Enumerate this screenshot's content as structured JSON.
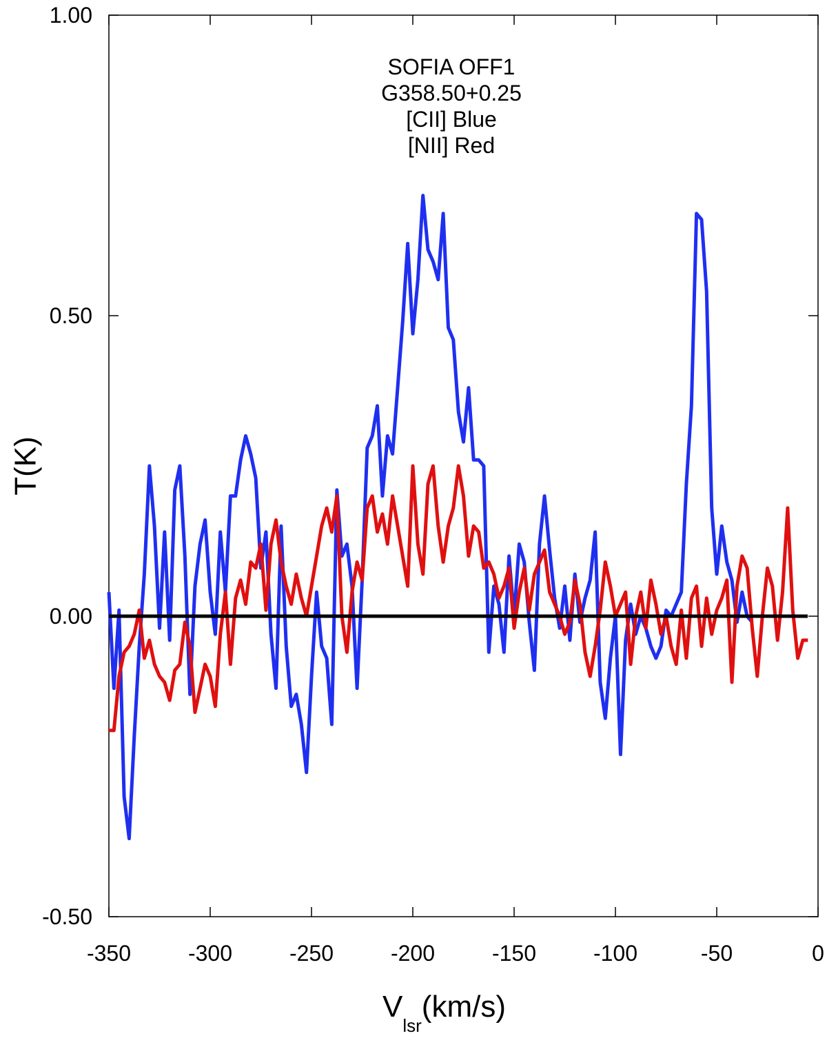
{
  "chart_data": {
    "type": "line",
    "annotations": [
      "SOFIA OFF1",
      "G358.50+0.25",
      "[CII] Blue",
      "[NII] Red"
    ],
    "ylabel": "T(K)",
    "xlabel": {
      "main": "V",
      "sub": "lsr",
      "unit": "(km/s)"
    },
    "xlim": [
      -350,
      0
    ],
    "ylim": [
      -0.5,
      1.0
    ],
    "xticks": [
      -350,
      -300,
      -250,
      -200,
      -150,
      -100,
      -50,
      0
    ],
    "yticks": [
      {
        "value": -0.5,
        "label": "-0.50"
      },
      {
        "value": 0,
        "label": "0.00"
      },
      {
        "value": 0.5,
        "label": "0.50"
      },
      {
        "value": 1.0,
        "label": "1.00"
      }
    ],
    "zero_line": true,
    "x": [
      -350,
      -347.5,
      -345,
      -342.5,
      -340,
      -337.5,
      -335,
      -332.5,
      -330,
      -327.5,
      -325,
      -322.5,
      -320,
      -317.5,
      -315,
      -312.5,
      -310,
      -307.5,
      -305,
      -302.5,
      -300,
      -297.5,
      -295,
      -292.5,
      -290,
      -287.5,
      -285,
      -282.5,
      -280,
      -277.5,
      -275,
      -272.5,
      -270,
      -267.5,
      -265,
      -262.5,
      -260,
      -257.5,
      -255,
      -252.5,
      -250,
      -247.5,
      -245,
      -242.5,
      -240,
      -237.5,
      -235,
      -232.5,
      -230,
      -227.5,
      -225,
      -222.5,
      -220,
      -217.5,
      -215,
      -212.5,
      -210,
      -207.5,
      -205,
      -202.5,
      -200,
      -197.5,
      -195,
      -192.5,
      -190,
      -187.5,
      -185,
      -182.5,
      -180,
      -177.5,
      -175,
      -172.5,
      -170,
      -167.5,
      -165,
      -162.5,
      -160,
      -157.5,
      -155,
      -152.5,
      -150,
      -147.5,
      -145,
      -142.5,
      -140,
      -137.5,
      -135,
      -132.5,
      -130,
      -127.5,
      -125,
      -122.5,
      -120,
      -117.5,
      -115,
      -112.5,
      -110,
      -107.5,
      -105,
      -102.5,
      -100,
      -97.5,
      -95,
      -92.5,
      -90,
      -87.5,
      -85,
      -82.5,
      -80,
      -77.5,
      -75,
      -72.5,
      -70,
      -67.5,
      -65,
      -62.5,
      -60,
      -57.5,
      -55,
      -52.5,
      -50,
      -47.5,
      -45,
      -42.5,
      -40,
      -37.5,
      -35,
      -32.5,
      -30,
      -27.5,
      -25,
      -22.5,
      -20,
      -17.5,
      -15,
      -12.5,
      -10,
      -7.5,
      -5
    ],
    "series": [
      {
        "color": "#1f2ff0",
        "values": [
          0.04,
          -0.12,
          0.01,
          -0.3,
          -0.37,
          -0.2,
          -0.05,
          0.07,
          0.25,
          0.15,
          -0.02,
          0.14,
          -0.04,
          0.21,
          0.25,
          0.1,
          -0.13,
          0.05,
          0.12,
          0.16,
          0.04,
          -0.03,
          0.14,
          0.04,
          0.2,
          0.2,
          0.26,
          0.3,
          0.27,
          0.23,
          0.08,
          0.14,
          -0.03,
          -0.12,
          0.15,
          -0.05,
          -0.15,
          -0.13,
          -0.18,
          -0.26,
          -0.1,
          0.04,
          -0.05,
          -0.07,
          -0.18,
          0.21,
          0.1,
          0.12,
          0.05,
          -0.12,
          0.06,
          0.28,
          0.3,
          0.35,
          0.2,
          0.3,
          0.27,
          0.38,
          0.49,
          0.62,
          0.47,
          0.56,
          0.7,
          0.61,
          0.59,
          0.56,
          0.67,
          0.48,
          0.46,
          0.34,
          0.29,
          0.38,
          0.26,
          0.26,
          0.25,
          -0.06,
          0.05,
          0.02,
          -0.06,
          0.1,
          0.0,
          0.12,
          0.09,
          -0.01,
          -0.09,
          0.12,
          0.2,
          0.11,
          0.03,
          -0.02,
          0.05,
          -0.04,
          0.07,
          -0.01,
          0.03,
          0.06,
          0.14,
          -0.11,
          -0.17,
          -0.07,
          0.0,
          -0.23,
          -0.04,
          0.02,
          -0.03,
          0.0,
          -0.02,
          -0.05,
          -0.07,
          -0.05,
          0.01,
          0.0,
          0.02,
          0.04,
          0.22,
          0.35,
          0.67,
          0.66,
          0.54,
          0.18,
          0.07,
          0.15,
          0.09,
          0.06,
          -0.01,
          0.04,
          0.0,
          -0.01,
          null,
          null,
          null,
          null,
          null,
          null,
          null,
          null,
          null,
          null,
          null
        ]
      },
      {
        "color": "#e01010",
        "values": [
          -0.19,
          -0.19,
          -0.1,
          -0.06,
          -0.05,
          -0.03,
          0.01,
          -0.07,
          -0.04,
          -0.08,
          -0.1,
          -0.11,
          -0.14,
          -0.09,
          -0.08,
          -0.01,
          -0.05,
          -0.16,
          -0.12,
          -0.08,
          -0.1,
          -0.15,
          -0.03,
          0.04,
          -0.08,
          0.03,
          0.06,
          0.02,
          0.09,
          0.08,
          0.12,
          0.01,
          0.12,
          0.16,
          0.09,
          0.05,
          0.02,
          0.07,
          0.03,
          0.0,
          0.05,
          0.1,
          0.15,
          0.18,
          0.14,
          0.2,
          0.0,
          -0.06,
          0.04,
          0.09,
          0.06,
          0.18,
          0.2,
          0.14,
          0.17,
          0.12,
          0.2,
          0.15,
          0.1,
          0.05,
          0.25,
          0.12,
          0.07,
          0.22,
          0.25,
          0.15,
          0.09,
          0.15,
          0.18,
          0.25,
          0.2,
          0.1,
          0.15,
          0.14,
          0.08,
          0.09,
          0.07,
          0.03,
          0.05,
          0.08,
          -0.02,
          0.04,
          0.08,
          0.01,
          0.07,
          0.09,
          0.11,
          0.04,
          0.02,
          0.0,
          -0.03,
          -0.01,
          0.06,
          0.02,
          -0.06,
          -0.1,
          -0.05,
          0.01,
          0.09,
          0.05,
          0.0,
          0.02,
          0.04,
          -0.08,
          0.0,
          0.04,
          -0.02,
          0.06,
          0.02,
          -0.03,
          0.0,
          -0.05,
          -0.08,
          0.01,
          -0.07,
          0.03,
          0.05,
          -0.05,
          0.03,
          -0.03,
          0.01,
          0.03,
          0.06,
          -0.11,
          0.05,
          0.1,
          0.08,
          -0.02,
          -0.1,
          0.0,
          0.08,
          0.05,
          -0.04,
          0.04,
          0.18,
          0.01,
          -0.07,
          -0.04,
          -0.04
        ]
      }
    ]
  }
}
